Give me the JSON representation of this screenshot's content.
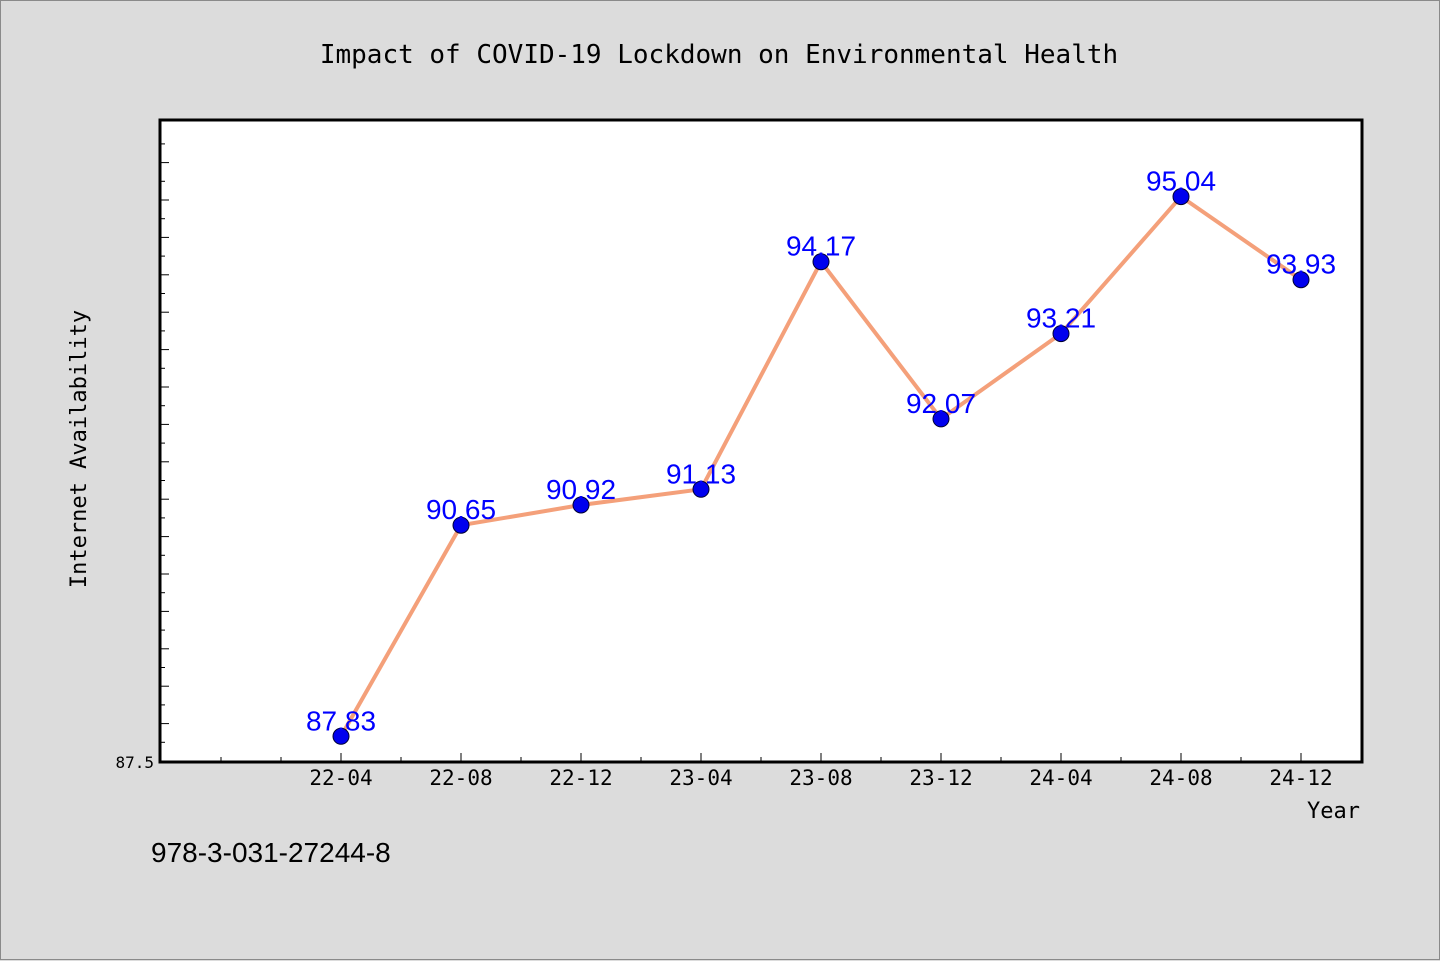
{
  "chart_data": {
    "type": "line",
    "title": "Impact of COVID-19 Lockdown on Environmental Health",
    "xlabel": "Year",
    "ylabel": "Internet Availability",
    "categories": [
      "22-04",
      "22-08",
      "22-12",
      "23-04",
      "23-08",
      "23-12",
      "24-04",
      "24-08",
      "24-12"
    ],
    "series": [
      {
        "values": [
          87.83,
          90.65,
          90.92,
          91.13,
          94.17,
          92.07,
          93.21,
          95.04,
          93.93
        ],
        "value_labels": [
          "87.83",
          "90.65",
          "90.92",
          "91.13",
          "94.17",
          "92.07",
          "93.21",
          "95.04",
          "93.93"
        ],
        "line_color": "#f4a07a",
        "marker_color": "#0000ee"
      }
    ],
    "ylim": [
      87.5,
      96.05
    ],
    "y_tick_labels": [
      "87.5"
    ],
    "grid": false,
    "label_color": "#0000ff"
  },
  "footer": {
    "note": "978-3-031-27244-8"
  }
}
